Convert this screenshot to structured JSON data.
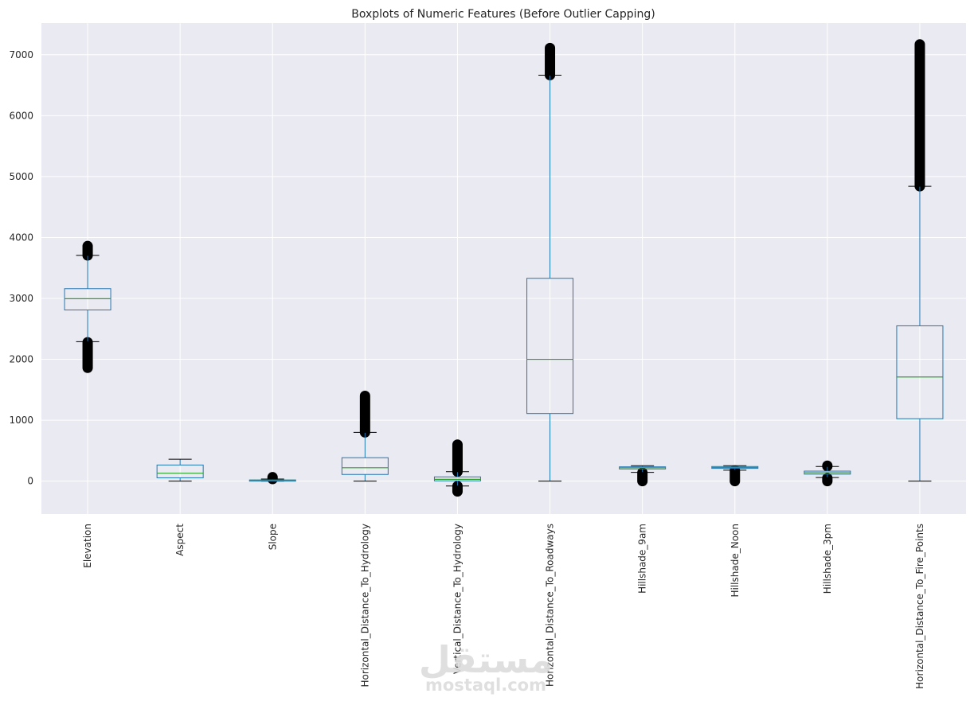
{
  "chart_data": {
    "type": "boxplot",
    "title": "Boxplots of Numeric Features (Before Outlier Capping)",
    "xlabel": "",
    "ylabel": "",
    "ylim": [
      -540,
      7520
    ],
    "yticks": [
      0,
      1000,
      2000,
      3000,
      4000,
      5000,
      6000,
      7000
    ],
    "grid": true,
    "colors": {
      "box": "#1f77b4",
      "median": "#2ca02c",
      "whisker_cap": "#000000",
      "background": "#eaeaf2",
      "grid": "#ffffff"
    },
    "categories": [
      "Elevation",
      "Aspect",
      "Slope",
      "Horizontal_Distance_To_Hydrology",
      "Vertical_Distance_To_Hydrology",
      "Horizontal_Distance_To_Roadways",
      "Hillshade_9am",
      "Hillshade_Noon",
      "Hillshade_3pm",
      "Horizontal_Distance_To_Fire_Points"
    ],
    "boxes": [
      {
        "label": "Elevation",
        "whislo": 2290,
        "q1": 2810,
        "median": 2995,
        "q3": 3160,
        "whishi": 3705,
        "outliers_low": [
          1860,
          2280
        ],
        "outliers_high": [
          3705,
          3860
        ]
      },
      {
        "label": "Aspect",
        "whislo": 0,
        "q1": 55,
        "median": 130,
        "q3": 265,
        "whishi": 360,
        "outliers_low": [],
        "outliers_high": []
      },
      {
        "label": "Slope",
        "whislo": 0,
        "q1": 10,
        "median": 15,
        "q3": 20,
        "whishi": 35,
        "outliers_low": [],
        "outliers_high": [
          35,
          65
        ]
      },
      {
        "label": "Horizontal_Distance_To_Hydrology",
        "whislo": 0,
        "q1": 110,
        "median": 220,
        "q3": 385,
        "whishi": 800,
        "outliers_low": [],
        "outliers_high": [
          800,
          1400
        ]
      },
      {
        "label": "Vertical_Distance_To_Hydrology",
        "whislo": -80,
        "q1": 5,
        "median": 30,
        "q3": 70,
        "whishi": 155,
        "outliers_low": [
          -170,
          -80
        ],
        "outliers_high": [
          155,
          600
        ]
      },
      {
        "label": "Horizontal_Distance_To_Roadways",
        "whislo": 0,
        "q1": 1110,
        "median": 2000,
        "q3": 3330,
        "whishi": 6665,
        "outliers_low": [],
        "outliers_high": [
          6665,
          7110
        ]
      },
      {
        "label": "Hillshade_9am",
        "whislo": 145,
        "q1": 200,
        "median": 220,
        "q3": 235,
        "whishi": 254,
        "outliers_low": [
          0,
          140
        ],
        "outliers_high": []
      },
      {
        "label": "Hillshade_Noon",
        "whislo": 180,
        "q1": 210,
        "median": 225,
        "q3": 240,
        "whishi": 254,
        "outliers_low": [
          0,
          175
        ],
        "outliers_high": []
      },
      {
        "label": "Hillshade_3pm",
        "whislo": 60,
        "q1": 115,
        "median": 140,
        "q3": 165,
        "whishi": 240,
        "outliers_low": [
          0,
          50
        ],
        "outliers_high": [
          245,
          254
        ]
      },
      {
        "label": "Horizontal_Distance_To_Fire_Points",
        "whislo": 0,
        "q1": 1025,
        "median": 1710,
        "q3": 2550,
        "whishi": 4840,
        "outliers_low": [],
        "outliers_high": [
          4840,
          7170
        ]
      }
    ]
  },
  "watermark": {
    "arabic": "مستقل",
    "latin": "mostaql.com"
  }
}
